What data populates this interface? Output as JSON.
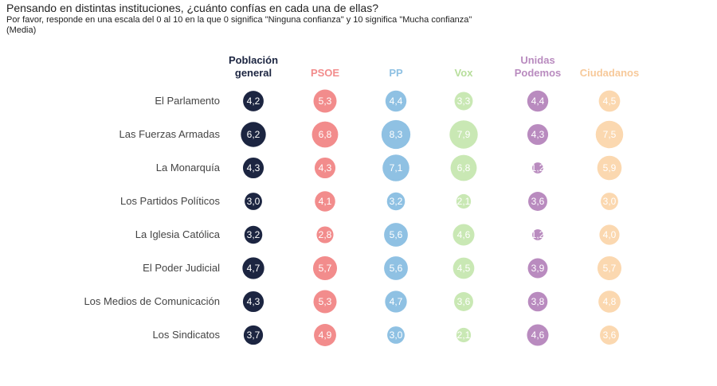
{
  "chart_data": {
    "type": "bubble-matrix",
    "title": "Pensando en distintas instituciones, ¿cuánto confías en cada una de ellas?",
    "subtitle": "Por favor, responde en una escala del 0 al 10 en la que 0 significa \"Ninguna confianza\" y 10 significa \"Mucha confianza\"",
    "note": "(Media)",
    "rows": [
      "El Parlamento",
      "Las Fuerzas Armadas",
      "La Monarquía",
      "Los Partidos Políticos",
      "La Iglesia Católica",
      "El Poder Judicial",
      "Los Medios de Comunicación",
      "Los Sindicatos"
    ],
    "series": [
      {
        "name": [
          "Población",
          "general"
        ],
        "color": "#1c2541",
        "header_color": "#1c2541",
        "values": [
          "4,2",
          "6,2",
          "4,3",
          "3,0",
          "3,2",
          "4,7",
          "4,3",
          "3,7"
        ]
      },
      {
        "name": [
          "PSOE"
        ],
        "color": "#f28c8c",
        "header_color": "#f28c8c",
        "values": [
          "5,3",
          "6,8",
          "4,3",
          "4,1",
          "2,8",
          "5,7",
          "5,3",
          "4,9"
        ]
      },
      {
        "name": [
          "PP"
        ],
        "color": "#8fc1e3",
        "header_color": "#8fc1e3",
        "values": [
          "4,4",
          "8,3",
          "7,1",
          "3,2",
          "5,6",
          "5,6",
          "4,7",
          "3,0"
        ]
      },
      {
        "name": [
          "Vox"
        ],
        "color": "#c9e8b4",
        "header_color": "#b7de9b",
        "values": [
          "3,3",
          "7,9",
          "6,8",
          "2,1",
          "4,6",
          "4,5",
          "3,6",
          "2,1"
        ]
      },
      {
        "name": [
          "Unidas",
          "Podemos"
        ],
        "color": "#b98bbf",
        "header_color": "#b98bbf",
        "values": [
          "4,4",
          "4,3",
          "1,2",
          "3,6",
          "1,2",
          "3,9",
          "3,8",
          "4,6"
        ]
      },
      {
        "name": [
          "Ciudadanos"
        ],
        "color": "#fbd8b0",
        "header_color": "#f7c99a",
        "values": [
          "4,5",
          "7,5",
          "5,9",
          "3,0",
          "4,0",
          "5,7",
          "4,8",
          "3,6"
        ]
      }
    ]
  }
}
